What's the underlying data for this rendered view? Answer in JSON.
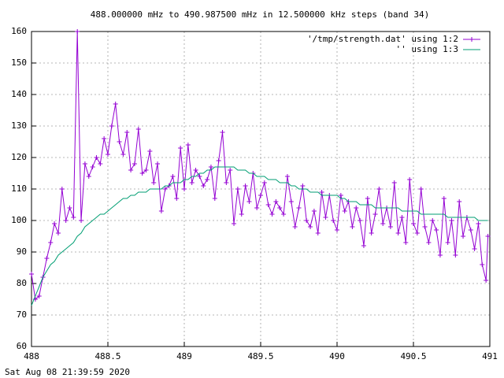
{
  "chart_data": {
    "type": "line",
    "title": "488.000000 mHz to 490.987500 mHz in 12.500000 kHz steps (band 34)",
    "footer": "Sat Aug 08 21:39:59 2020",
    "x": [
      488,
      488.025,
      488.05,
      488.075,
      488.1,
      488.125,
      488.15,
      488.175,
      488.2,
      488.225,
      488.25,
      488.275,
      488.3,
      488.325,
      488.35,
      488.375,
      488.4,
      488.425,
      488.45,
      488.475,
      488.5,
      488.525,
      488.55,
      488.575,
      488.6,
      488.625,
      488.65,
      488.675,
      488.7,
      488.725,
      488.75,
      488.775,
      488.8,
      488.825,
      488.85,
      488.875,
      488.9,
      488.925,
      488.95,
      488.975,
      489,
      489.025,
      489.05,
      489.075,
      489.1,
      489.125,
      489.15,
      489.175,
      489.2,
      489.225,
      489.25,
      489.275,
      489.3,
      489.325,
      489.35,
      489.375,
      489.4,
      489.425,
      489.45,
      489.475,
      489.5,
      489.525,
      489.55,
      489.575,
      489.6,
      489.625,
      489.65,
      489.675,
      489.7,
      489.725,
      489.75,
      489.775,
      489.8,
      489.825,
      489.85,
      489.875,
      489.9,
      489.925,
      489.95,
      489.975,
      490,
      490.025,
      490.05,
      490.075,
      490.1,
      490.125,
      490.15,
      490.175,
      490.2,
      490.225,
      490.25,
      490.275,
      490.3,
      490.325,
      490.35,
      490.375,
      490.4,
      490.425,
      490.45,
      490.475,
      490.5,
      490.525,
      490.55,
      490.575,
      490.6,
      490.625,
      490.65,
      490.675,
      490.7,
      490.725,
      490.75,
      490.775,
      490.8,
      490.825,
      490.85,
      490.875,
      490.9,
      490.925,
      490.95,
      490.975,
      490.9875
    ],
    "series": [
      {
        "name": "'/tmp/strength.dat' using 1:2",
        "color": "#9400d3",
        "points": true,
        "values": [
          83,
          75,
          76,
          82,
          88,
          93,
          99,
          96,
          110,
          100,
          104,
          101,
          160,
          100,
          118,
          114,
          117,
          120,
          118,
          126,
          121,
          130,
          137,
          125,
          121,
          128,
          116,
          118,
          129,
          115,
          116,
          122,
          112,
          118,
          103,
          110,
          111,
          114,
          107,
          123,
          110,
          124,
          112,
          116,
          114,
          111,
          113,
          117,
          107,
          119,
          128,
          112,
          116,
          99,
          110,
          102,
          111,
          106,
          115,
          104,
          108,
          112,
          105,
          102,
          106,
          104,
          102,
          114,
          106,
          98,
          104,
          111,
          100,
          98,
          103,
          96,
          109,
          101,
          108,
          100,
          97,
          108,
          103,
          106,
          98,
          104,
          100,
          92,
          107,
          96,
          102,
          110,
          99,
          104,
          98,
          112,
          96,
          101,
          93,
          113,
          99,
          96,
          110,
          98,
          93,
          100,
          97,
          89,
          107,
          93,
          100,
          89,
          106,
          95,
          101,
          97,
          91,
          99,
          86,
          81,
          95
        ]
      },
      {
        "name": "'' using 1:3",
        "color": "#009e73",
        "points": false,
        "values": [
          73,
          76,
          79,
          82,
          84,
          86,
          87,
          89,
          90,
          91,
          92,
          93,
          95,
          96,
          98,
          99,
          100,
          101,
          102,
          102,
          103,
          104,
          105,
          106,
          107,
          107,
          108,
          108,
          109,
          109,
          109,
          110,
          110,
          110,
          110,
          111,
          111,
          112,
          112,
          112,
          113,
          113,
          114,
          114,
          115,
          115,
          116,
          116,
          117,
          117,
          117,
          117,
          117,
          117,
          116,
          116,
          116,
          115,
          115,
          114,
          114,
          114,
          113,
          113,
          113,
          112,
          112,
          112,
          111,
          111,
          110,
          110,
          110,
          109,
          109,
          109,
          108,
          108,
          108,
          108,
          108,
          107,
          107,
          106,
          106,
          106,
          105,
          105,
          105,
          105,
          104,
          104,
          104,
          104,
          104,
          104,
          104,
          103,
          103,
          103,
          103,
          103,
          102,
          102,
          102,
          102,
          102,
          102,
          102,
          101,
          101,
          101,
          101,
          101,
          101,
          101,
          101,
          100,
          100,
          100,
          100
        ]
      }
    ],
    "xlim": [
      488,
      491
    ],
    "xticks": [
      488,
      488.5,
      489,
      489.5,
      490,
      490.5,
      491
    ],
    "ylim": [
      60,
      160
    ],
    "yticks": [
      60,
      70,
      80,
      90,
      100,
      110,
      120,
      130,
      140,
      150,
      160
    ],
    "grid": true,
    "legend": "top-right"
  }
}
